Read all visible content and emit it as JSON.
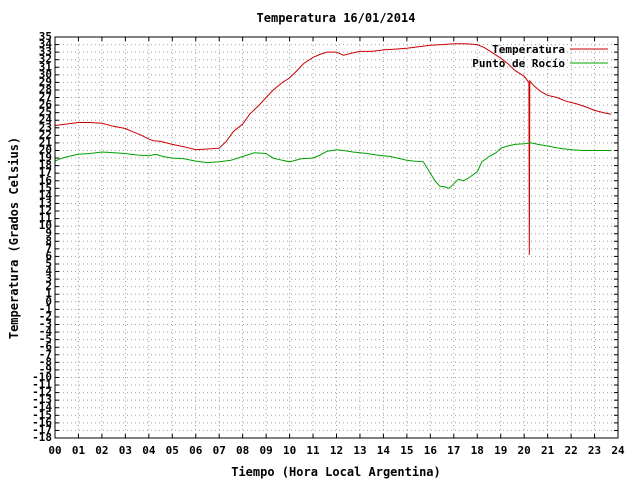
{
  "chart_data": {
    "type": "line",
    "title": "Temperatura 16/01/2014",
    "xlabel": "Tiempo (Hora Local Argentina)",
    "ylabel": "Temperatura (Grados Celsius)",
    "xlim": [
      0,
      24
    ],
    "ylim": [
      -18,
      35
    ],
    "x_ticks": [
      "00",
      "01",
      "02",
      "03",
      "04",
      "05",
      "06",
      "07",
      "08",
      "09",
      "10",
      "11",
      "12",
      "13",
      "14",
      "15",
      "16",
      "17",
      "18",
      "19",
      "20",
      "21",
      "22",
      "23",
      "24"
    ],
    "y_ticks": [
      35,
      34,
      33,
      32,
      31,
      30,
      29,
      28,
      27,
      26,
      25,
      24,
      23,
      22,
      21,
      20,
      19,
      18,
      17,
      16,
      15,
      14,
      13,
      12,
      11,
      10,
      9,
      8,
      7,
      6,
      5,
      4,
      3,
      2,
      1,
      0,
      -1,
      -2,
      -3,
      -4,
      -5,
      -6,
      -7,
      -8,
      -9,
      -10,
      -11,
      -12,
      -13,
      -14,
      -15,
      -16,
      -17,
      -18
    ],
    "grid": true,
    "legend_position": "top-right",
    "series": [
      {
        "name": "Temperatura",
        "color": "#cc0000",
        "x": [
          0,
          0.5,
          1,
          1.5,
          2,
          2.5,
          3,
          3.3,
          3.7,
          4,
          4.2,
          4.5,
          5,
          5.5,
          6,
          6.5,
          7,
          7.3,
          7.6,
          8,
          8.3,
          8.7,
          9,
          9.3,
          9.7,
          10,
          10.3,
          10.6,
          11,
          11.3,
          11.6,
          12,
          12.3,
          12.7,
          13,
          13.5,
          14,
          14.5,
          15,
          15.5,
          16,
          16.5,
          17,
          17.5,
          18,
          18.3,
          18.7,
          19,
          19.3,
          19.6,
          20,
          20.2,
          20.22,
          20.24,
          20.4,
          20.7,
          21,
          21.4,
          21.8,
          22.2,
          22.6,
          23,
          23.4,
          23.7
        ],
        "y": [
          23.3,
          23.5,
          23.7,
          23.7,
          23.6,
          23.2,
          22.9,
          22.5,
          22.0,
          21.5,
          21.3,
          21.2,
          20.8,
          20.5,
          20.1,
          20.2,
          20.3,
          21.2,
          22.5,
          23.5,
          24.8,
          26.0,
          27.0,
          28.0,
          29.0,
          29.6,
          30.5,
          31.5,
          32.3,
          32.7,
          33.0,
          33.0,
          32.6,
          32.9,
          33.1,
          33.1,
          33.3,
          33.4,
          33.5,
          33.7,
          33.9,
          34.0,
          34.1,
          34.1,
          34.0,
          33.6,
          32.8,
          32.2,
          31.5,
          30.6,
          29.8,
          29.0,
          6.2,
          29.2,
          28.6,
          27.8,
          27.3,
          27.0,
          26.5,
          26.2,
          25.8,
          25.3,
          25.0,
          24.8
        ]
      },
      {
        "name": "Punto de Rocío",
        "color": "#00a000",
        "x": [
          0,
          0.3,
          0.7,
          1,
          1.5,
          2,
          2.5,
          3,
          3.5,
          4,
          4.3,
          4.6,
          5,
          5.5,
          6,
          6.5,
          7,
          7.5,
          8,
          8.5,
          9,
          9.3,
          9.7,
          10,
          10.5,
          11,
          11.3,
          11.6,
          12,
          12.3,
          12.7,
          13,
          13.3,
          13.7,
          14,
          14.3,
          14.6,
          15,
          15.3,
          15.7,
          16,
          16.2,
          16.4,
          16.6,
          16.8,
          17,
          17.2,
          17.4,
          17.6,
          18,
          18.2,
          18.5,
          18.8,
          19,
          19.3,
          19.6,
          20,
          20.3,
          20.6,
          21,
          21.5,
          22,
          22.5,
          23,
          23.7
        ],
        "y": [
          18.6,
          19.0,
          19.3,
          19.5,
          19.6,
          19.8,
          19.7,
          19.6,
          19.4,
          19.3,
          19.5,
          19.2,
          19.0,
          18.9,
          18.6,
          18.4,
          18.5,
          18.7,
          19.2,
          19.7,
          19.6,
          19.0,
          18.7,
          18.5,
          18.9,
          19.0,
          19.4,
          19.9,
          20.1,
          20.0,
          19.8,
          19.7,
          19.6,
          19.4,
          19.3,
          19.2,
          19.0,
          18.7,
          18.6,
          18.5,
          17.0,
          16.0,
          15.3,
          15.2,
          15.0,
          15.6,
          16.2,
          16.0,
          16.3,
          17.2,
          18.5,
          19.2,
          19.7,
          20.3,
          20.6,
          20.8,
          20.9,
          21.0,
          20.8,
          20.6,
          20.3,
          20.1,
          20.0,
          20.0,
          20.0
        ]
      }
    ]
  }
}
